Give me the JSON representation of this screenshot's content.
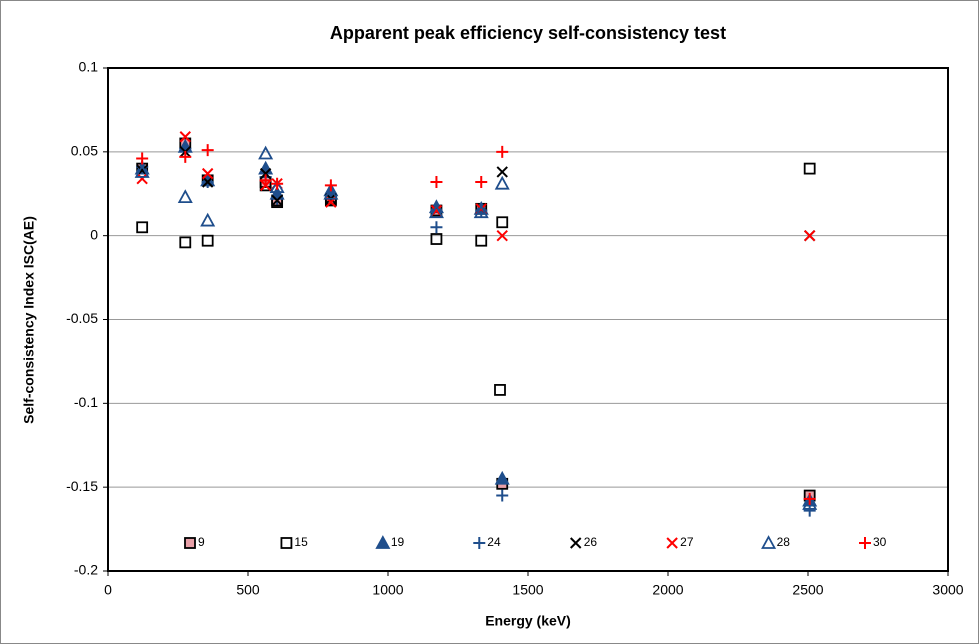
{
  "chart_data": {
    "type": "scatter",
    "title": "Apparent peak efficiency self-consistency test",
    "x_label": "Energy (keV)",
    "y_label": "Self-consistency Index ISC(AE)",
    "xlim": [
      0,
      3000
    ],
    "xticks": [
      0,
      500,
      1000,
      1500,
      2000,
      2500,
      3000
    ],
    "ylim": [
      -0.2,
      0.1
    ],
    "yticks": [
      -0.2,
      -0.15,
      -0.1,
      -0.05,
      0,
      0.05,
      0.1
    ],
    "grid": true,
    "legend": "bottom",
    "series": [
      {
        "name": "9",
        "marker": "square",
        "color": "#000000",
        "fill": "#e8a0a8",
        "x": [
          122,
          276,
          356,
          563,
          604,
          796,
          1173,
          1333,
          1408,
          2506
        ],
        "values": [
          0.04,
          0.055,
          0.033,
          0.032,
          0.02,
          0.022,
          0.015,
          0.016,
          -0.148,
          -0.155
        ]
      },
      {
        "name": "15",
        "marker": "square",
        "color": "#000000",
        "x": [
          122,
          276,
          356,
          563,
          604,
          796,
          1173,
          1333,
          1408,
          1400,
          2506
        ],
        "values": [
          0.005,
          -0.004,
          -0.003,
          0.03,
          0.021,
          0.021,
          -0.002,
          -0.003,
          0.008,
          -0.092,
          0.04
        ]
      },
      {
        "name": "19",
        "marker": "triangle",
        "color": "#1f4e8c",
        "fill": "#1f4e8c",
        "x": [
          122,
          276,
          356,
          563,
          604,
          796,
          1173,
          1333,
          1408,
          2506
        ],
        "values": [
          0.04,
          0.053,
          0.033,
          0.04,
          0.025,
          0.027,
          0.017,
          0.016,
          -0.145,
          -0.158
        ]
      },
      {
        "name": "24",
        "marker": "plus",
        "color": "#1f4e8c",
        "x": [
          122,
          276,
          356,
          563,
          604,
          796,
          1173,
          1333,
          1408,
          2506
        ],
        "values": [
          0.041,
          0.052,
          0.032,
          0.035,
          0.022,
          0.024,
          0.005,
          0.015,
          -0.155,
          -0.164
        ]
      },
      {
        "name": "26",
        "marker": "x",
        "color": "#000000",
        "x": [
          122,
          276,
          356,
          563,
          604,
          796,
          1173,
          1333,
          1408,
          2506
        ],
        "values": [
          0.039,
          0.05,
          0.032,
          0.037,
          0.021,
          0.022,
          0.015,
          0.016,
          0.038,
          0.0
        ]
      },
      {
        "name": "27",
        "marker": "x",
        "color": "#ff0000",
        "x": [
          122,
          276,
          356,
          563,
          604,
          796,
          1173,
          1333,
          1408,
          2506
        ],
        "values": [
          0.034,
          0.059,
          0.037,
          0.03,
          0.031,
          0.02,
          0.015,
          0.016,
          0.0,
          0.0
        ]
      },
      {
        "name": "28",
        "marker": "triangle",
        "color": "#1f4e8c",
        "x": [
          122,
          276,
          356,
          563,
          604,
          796,
          1173,
          1333,
          1408,
          2506
        ],
        "values": [
          0.038,
          0.023,
          0.009,
          0.049,
          0.029,
          0.025,
          0.014,
          0.014,
          0.031,
          -0.16
        ]
      },
      {
        "name": "30",
        "marker": "plus",
        "color": "#ff0000",
        "x": [
          122,
          276,
          356,
          563,
          604,
          796,
          1173,
          1333,
          1408,
          2506
        ],
        "values": [
          0.046,
          0.047,
          0.051,
          0.033,
          0.031,
          0.03,
          0.032,
          0.032,
          0.05,
          -0.157
        ]
      }
    ]
  }
}
